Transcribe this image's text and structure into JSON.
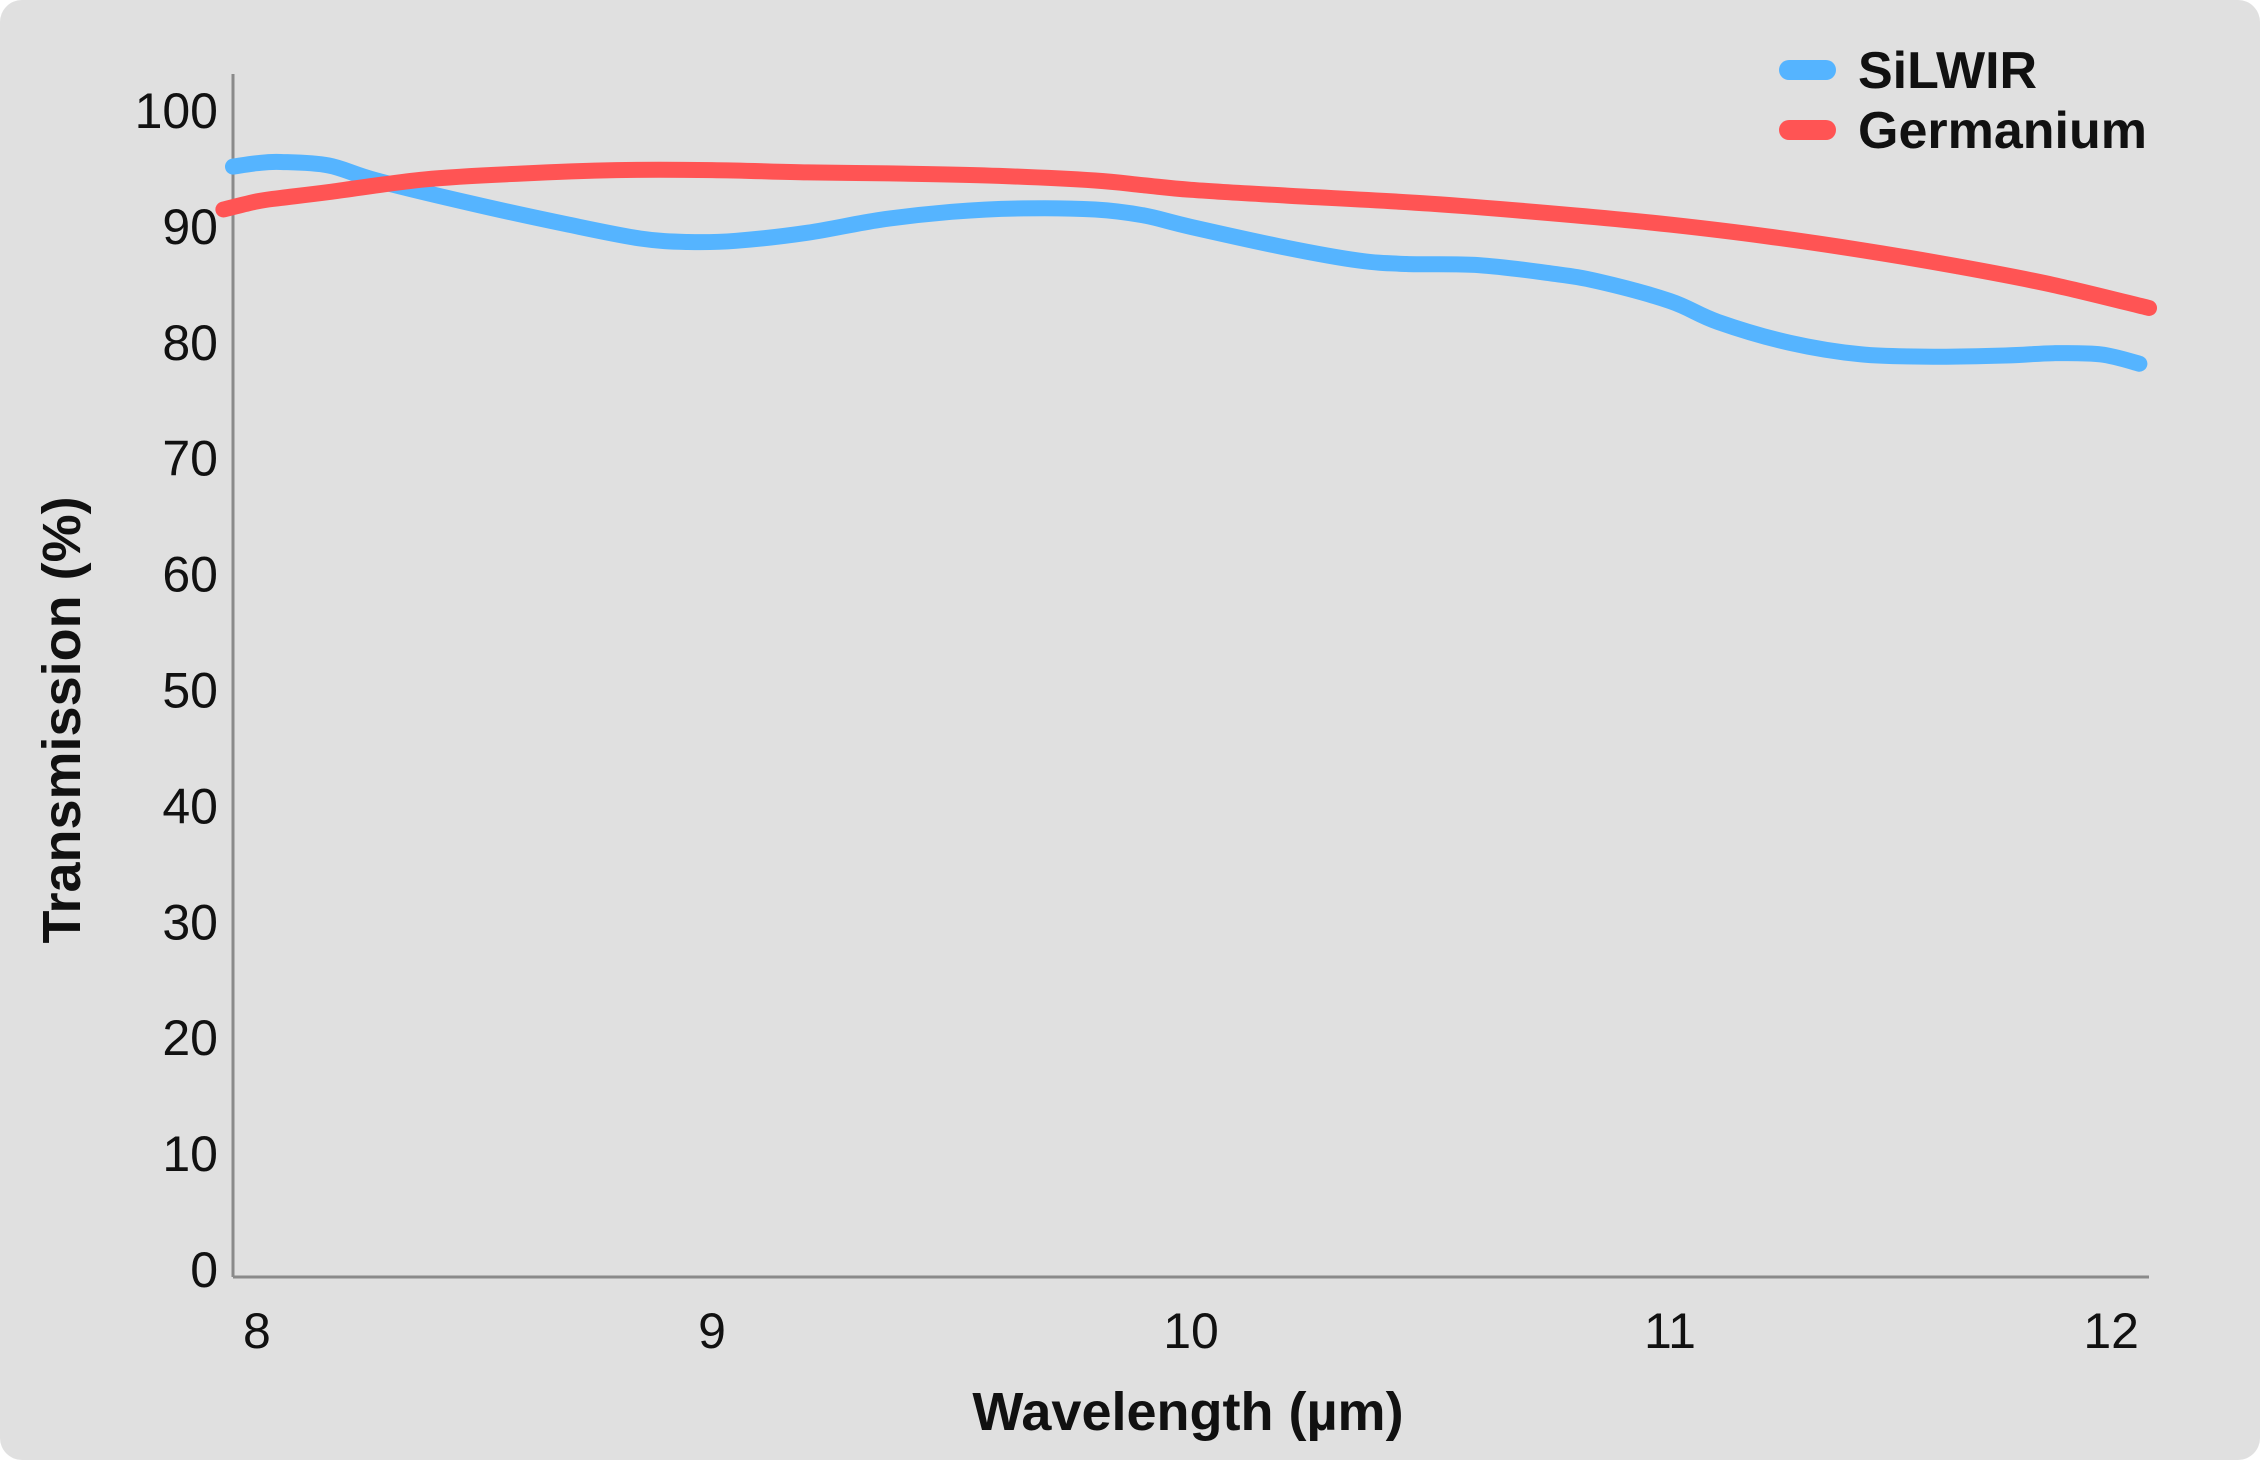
{
  "chart_data": {
    "type": "line",
    "xlabel": "Wavelength (µm)",
    "ylabel": "Transmission (%)",
    "xlim": [
      8,
      12
    ],
    "ylim": [
      0,
      100
    ],
    "x_ticks": [
      8,
      9,
      10,
      11,
      12
    ],
    "x_tick_labels": [
      "8",
      "9",
      "10",
      "11",
      "12"
    ],
    "y_ticks": [
      0,
      10,
      20,
      30,
      40,
      50,
      60,
      70,
      80,
      90,
      100
    ],
    "y_tick_labels": [
      "0",
      "10",
      "20",
      "30",
      "40",
      "50",
      "60",
      "70",
      "80",
      "90",
      "100"
    ],
    "grid": false,
    "legend_position": "top-right",
    "series": [
      {
        "name": "SiLWIR",
        "color": "#55b4ff",
        "x": [
          8.0,
          8.05,
          8.1,
          8.2,
          8.3,
          8.5,
          8.7,
          8.85,
          8.95,
          9.05,
          9.2,
          9.35,
          9.5,
          9.65,
          9.8,
          9.9,
          10.0,
          10.2,
          10.35,
          10.45,
          10.6,
          10.75,
          10.85,
          11.0,
          11.1,
          11.25,
          11.4,
          11.55,
          11.7,
          11.8,
          11.9,
          11.98
        ],
        "values": [
          95.2,
          95.5,
          95.6,
          95.3,
          94.0,
          92.0,
          90.2,
          89.0,
          88.7,
          88.8,
          89.5,
          90.6,
          91.3,
          91.6,
          91.5,
          91.0,
          90.0,
          88.2,
          87.1,
          86.8,
          86.7,
          86.0,
          85.3,
          83.6,
          81.8,
          80.0,
          79.0,
          78.8,
          78.9,
          79.1,
          79.0,
          78.2
        ]
      },
      {
        "name": "Germanium",
        "color": "#ff5454",
        "x": [
          7.98,
          8.05,
          8.1,
          8.2,
          8.4,
          8.6,
          8.8,
          9.0,
          9.2,
          9.4,
          9.6,
          9.8,
          9.9,
          10.0,
          10.2,
          10.5,
          10.8,
          11.0,
          11.2,
          11.4,
          11.6,
          11.8,
          12.0
        ],
        "values": [
          91.5,
          92.2,
          92.5,
          93.0,
          94.1,
          94.6,
          94.9,
          94.9,
          94.7,
          94.6,
          94.4,
          94.0,
          93.6,
          93.2,
          92.7,
          92.0,
          91.0,
          90.2,
          89.2,
          88.0,
          86.6,
          85.0,
          83.0
        ]
      }
    ]
  }
}
